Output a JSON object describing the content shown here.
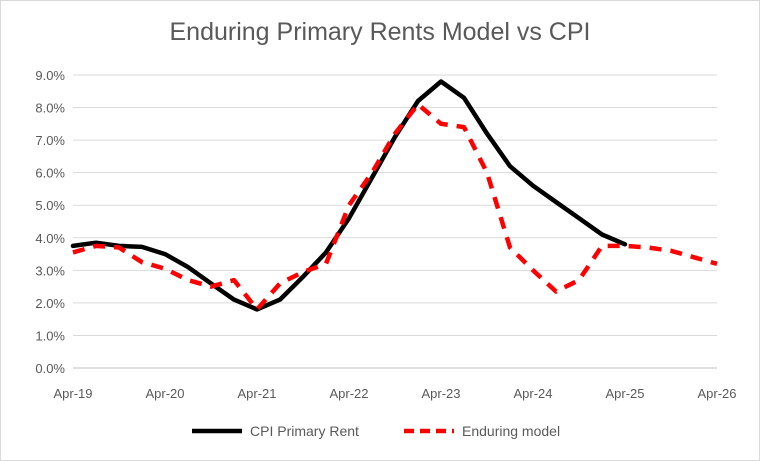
{
  "chart_data": {
    "type": "line",
    "title": "Enduring Primary Rents Model vs CPI",
    "xlabel": "",
    "ylabel": "",
    "x_ticks": [
      "Apr-19",
      "Apr-20",
      "Apr-21",
      "Apr-22",
      "Apr-23",
      "Apr-24",
      "Apr-25",
      "Apr-26"
    ],
    "y_ticks": [
      "0.0%",
      "1.0%",
      "2.0%",
      "3.0%",
      "4.0%",
      "5.0%",
      "6.0%",
      "7.0%",
      "8.0%",
      "9.0%"
    ],
    "xlim": [
      "2019-04",
      "2026-04"
    ],
    "ylim": [
      0,
      9
    ],
    "grid": "horizontal",
    "legend_position": "bottom",
    "series": [
      {
        "name": "CPI Primary Rent",
        "color": "#000000",
        "style": "solid",
        "x": [
          "2019-04",
          "2019-07",
          "2019-10",
          "2020-01",
          "2020-04",
          "2020-07",
          "2020-10",
          "2021-01",
          "2021-04",
          "2021-07",
          "2021-10",
          "2022-01",
          "2022-04",
          "2022-07",
          "2022-10",
          "2023-01",
          "2023-04",
          "2023-07",
          "2023-10",
          "2024-01",
          "2024-04",
          "2024-07",
          "2024-10",
          "2025-01",
          "2025-04"
        ],
        "y": [
          3.75,
          3.85,
          3.75,
          3.72,
          3.5,
          3.1,
          2.6,
          2.1,
          1.8,
          2.1,
          2.8,
          3.55,
          4.6,
          5.85,
          7.1,
          8.2,
          8.8,
          8.3,
          7.2,
          6.2,
          5.6,
          5.1,
          4.6,
          4.1,
          3.8
        ]
      },
      {
        "name": "Enduring model",
        "color": "#ff0000",
        "style": "dashed",
        "x": [
          "2019-04",
          "2019-07",
          "2019-10",
          "2020-01",
          "2020-04",
          "2020-07",
          "2020-10",
          "2021-01",
          "2021-04",
          "2021-07",
          "2021-10",
          "2022-01",
          "2022-04",
          "2022-07",
          "2022-10",
          "2023-01",
          "2023-04",
          "2023-07",
          "2023-10",
          "2024-01",
          "2024-04",
          "2024-07",
          "2024-10",
          "2025-01",
          "2025-04",
          "2025-07",
          "2025-10",
          "2026-01",
          "2026-04"
        ],
        "y": [
          3.55,
          3.75,
          3.7,
          3.25,
          3.05,
          2.7,
          2.5,
          2.7,
          1.8,
          2.6,
          2.95,
          3.2,
          5.0,
          6.0,
          7.2,
          8.1,
          7.5,
          7.4,
          6.0,
          3.7,
          3.0,
          2.35,
          2.7,
          3.75,
          3.75,
          3.7,
          3.6,
          3.4,
          3.2
        ]
      }
    ]
  }
}
